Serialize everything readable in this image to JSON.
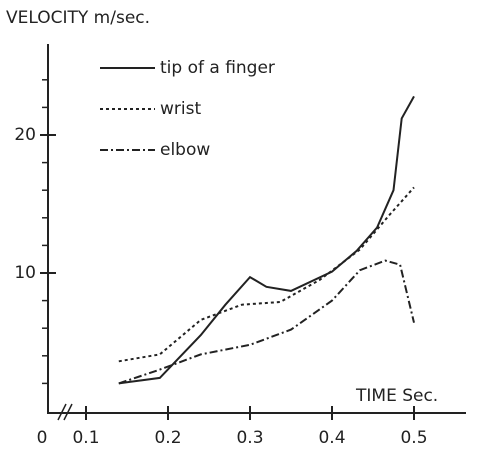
{
  "chart_data": {
    "type": "line",
    "title": "VELOCITY m/sec.",
    "x_label": "TIME Sec.",
    "x_origin_label": "0",
    "xlim": [
      0.05,
      0.55
    ],
    "xticks": [
      {
        "value": 0.1,
        "label": "0.1"
      },
      {
        "value": 0.2,
        "label": "0.2"
      },
      {
        "value": 0.3,
        "label": "0.3"
      },
      {
        "value": 0.4,
        "label": "0.4"
      },
      {
        "value": 0.5,
        "label": "0.5"
      }
    ],
    "ylim": [
      0,
      26
    ],
    "yticks": [
      10,
      20
    ],
    "yminor_ticks": [
      2,
      4,
      6,
      8,
      12,
      14,
      16,
      18,
      22,
      24
    ],
    "series": [
      {
        "name": "tip of a finger",
        "color": "#222",
        "style": "solid",
        "x": [
          0.14,
          0.19,
          0.24,
          0.27,
          0.3,
          0.32,
          0.35,
          0.4,
          0.43,
          0.455,
          0.475,
          0.485,
          0.5
        ],
        "values": [
          2.0,
          2.4,
          5.5,
          7.7,
          9.7,
          9.0,
          8.7,
          10.1,
          11.6,
          13.3,
          16.0,
          21.2,
          22.8
        ]
      },
      {
        "name": "wrist",
        "color": "#222",
        "style": "dashed",
        "x": [
          0.14,
          0.19,
          0.24,
          0.29,
          0.337,
          0.385,
          0.434,
          0.47,
          0.5
        ],
        "values": [
          3.6,
          4.1,
          6.6,
          7.7,
          7.9,
          9.5,
          11.7,
          14.2,
          16.2
        ]
      },
      {
        "name": "elbow",
        "color": "#222",
        "style": "dashdot",
        "x": [
          0.14,
          0.19,
          0.24,
          0.3,
          0.35,
          0.4,
          0.434,
          0.465,
          0.483,
          0.5
        ],
        "values": [
          2.0,
          3.0,
          4.1,
          4.8,
          5.9,
          8.0,
          10.2,
          10.9,
          10.6,
          6.4
        ]
      }
    ]
  }
}
